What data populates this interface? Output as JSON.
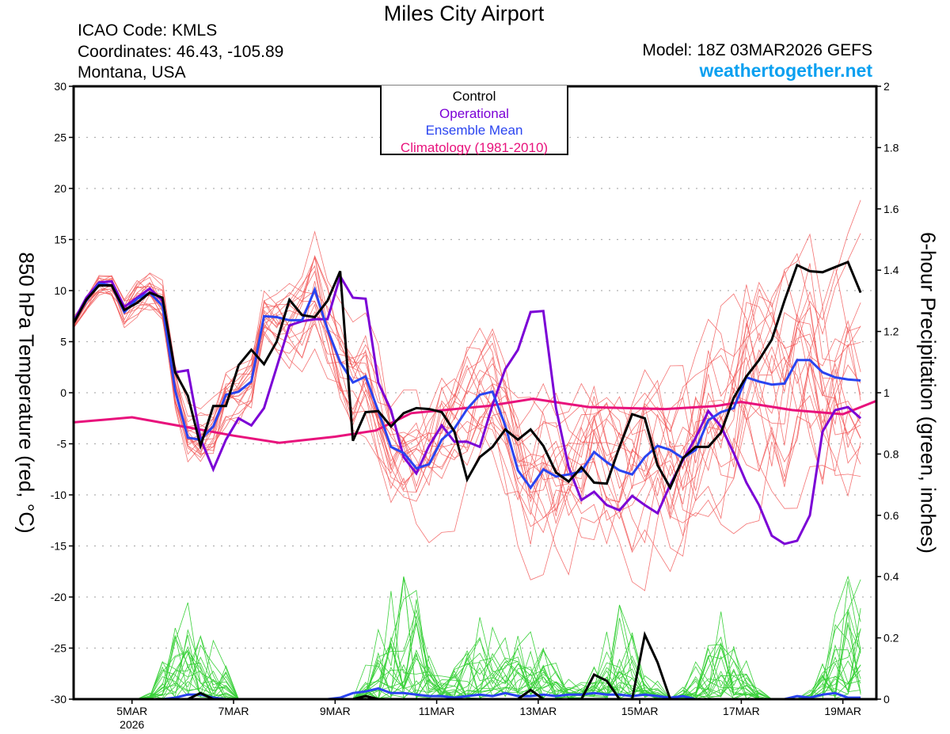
{
  "header": {
    "title": "Miles City Airport",
    "icao": "ICAO Code: KMLS",
    "coordinates": "Coordinates: 46.43, -105.89",
    "region": "Montana, USA",
    "model": "Model: 18Z 03MAR2026 GEFS",
    "site": "weathertogether.net"
  },
  "legend": {
    "items": [
      {
        "label": "Control",
        "color": "#000000"
      },
      {
        "label": "Operational",
        "color": "#7b00d6"
      },
      {
        "label": "Ensemble Mean",
        "color": "#2a44f0"
      },
      {
        "label": "Climatology (1981-2010)",
        "color": "#e8127c"
      }
    ]
  },
  "colors": {
    "members_temp": "#f25a5a",
    "members_precip": "#3ad13a",
    "control": "#000000",
    "operational": "#7b00d6",
    "mean": "#2a44f0",
    "climatology": "#e8127c",
    "grid": "#b0b0b0"
  },
  "chart_data": {
    "type": "line",
    "title": "Miles City Airport",
    "xlabel": "",
    "ylabel_left": "850 hPa Temperature (red, °C)",
    "ylabel_right": "6-hour Precipitation (green, inches)",
    "ylim_left": [
      -30,
      30
    ],
    "ylim_right": [
      0,
      2
    ],
    "yticks_left": [
      30,
      25,
      20,
      15,
      10,
      5,
      0,
      -5,
      -10,
      -15,
      -20,
      -25,
      -30
    ],
    "yticks_right": [
      "2",
      "1.8",
      "1.6",
      "1.4",
      "1.2",
      "1",
      "0.8",
      "0.6",
      "0.4",
      "0.2",
      "0"
    ],
    "xlim_day_of_march": [
      3.85,
      19.66
    ],
    "xticks": [
      {
        "day": 5,
        "label": "5MAR",
        "sublabel": "2026"
      },
      {
        "day": 7,
        "label": "7MAR",
        "sublabel": ""
      },
      {
        "day": 9,
        "label": "9MAR",
        "sublabel": ""
      },
      {
        "day": 11,
        "label": "11MAR",
        "sublabel": ""
      },
      {
        "day": 13,
        "label": "13MAR",
        "sublabel": ""
      },
      {
        "day": 15,
        "label": "15MAR",
        "sublabel": ""
      },
      {
        "day": 17,
        "label": "17MAR",
        "sublabel": ""
      },
      {
        "day": 19,
        "label": "19MAR",
        "sublabel": ""
      }
    ],
    "grid": true,
    "legend_position": "top-center",
    "x_start_day": 3.85,
    "x_step_days": 0.25,
    "series": [
      {
        "name": "Control",
        "axis": "left",
        "values": [
          6.8,
          9.1,
          10.5,
          10.5,
          8.1,
          8.8,
          9.8,
          9.3,
          2.0,
          -0.3,
          -5.2,
          -1.3,
          -1.3,
          2.7,
          4.2,
          2.8,
          5.0,
          9.1,
          7.6,
          7.4,
          9.0,
          11.9,
          -4.7,
          -1.9,
          -1.8,
          -3.3,
          -2.0,
          -1.5,
          -1.6,
          -1.9,
          -3.8,
          -8.5,
          -6.3,
          -5.3,
          -3.6,
          -4.6,
          -3.6,
          -5.2,
          -7.8,
          -8.7,
          -7.3,
          -8.8,
          -8.9,
          -5.3,
          -2.1,
          -2.5,
          -7.1,
          -9.3,
          -6.4,
          -5.3,
          -5.3,
          -3.9,
          -0.5,
          1.6,
          3.2,
          5.2,
          9.0,
          12.5,
          11.9,
          11.8,
          12.3,
          12.8,
          9.8
        ]
      },
      {
        "name": "Operational",
        "axis": "left",
        "values": [
          7.0,
          9.3,
          10.8,
          10.9,
          8.4,
          9.3,
          10.2,
          9.0,
          2.0,
          2.2,
          -4.5,
          -7.5,
          -4.6,
          -2.5,
          -3.2,
          -1.5,
          2.5,
          6.6,
          7.0,
          7.2,
          7.2,
          11.4,
          9.3,
          9.2,
          1.0,
          -1.7,
          -6.3,
          -7.9,
          -5.2,
          -3.2,
          -4.8,
          -4.8,
          -5.3,
          -1.2,
          2.3,
          4.2,
          7.9,
          8.0,
          -1.5,
          -7.3,
          -10.5,
          -9.7,
          -11.0,
          -11.5,
          -10.1,
          -11.0,
          -11.8,
          -9.0,
          -6.6,
          -4.4,
          -1.8,
          -3.3,
          -5.9,
          -8.8,
          -11.0,
          -14.0,
          -14.8,
          -14.5,
          -12.0,
          -3.8,
          -1.7,
          -1.4,
          -2.5
        ]
      },
      {
        "name": "Ensemble Mean",
        "axis": "left",
        "values": [
          6.9,
          9.0,
          10.7,
          10.5,
          7.9,
          9.2,
          9.8,
          8.5,
          0.2,
          -4.4,
          -4.6,
          -3.3,
          -0.2,
          0.1,
          1.1,
          7.5,
          7.4,
          7.1,
          7.1,
          10.1,
          6.2,
          3.0,
          1.0,
          1.6,
          -1.8,
          -5.3,
          -5.9,
          -7.4,
          -7.0,
          -4.6,
          -3.5,
          -1.6,
          -0.2,
          0.1,
          -3.2,
          -7.6,
          -9.3,
          -7.5,
          -8.2,
          -8.0,
          -7.7,
          -5.8,
          -6.8,
          -7.6,
          -8.0,
          -6.3,
          -5.2,
          -5.6,
          -6.4,
          -5.6,
          -2.7,
          -1.9,
          -1.5,
          1.5,
          1.1,
          0.8,
          0.9,
          3.2,
          3.2,
          2.0,
          1.5,
          1.3,
          1.2
        ]
      },
      {
        "name": "Climatology (1981-2010)",
        "axis": "left",
        "x_days": [
          3.85,
          5.0,
          7.0,
          7.9,
          9.0,
          9.8,
          10.5,
          12.0,
          12.9,
          14.0,
          15.5,
          16.5,
          17.0,
          18.0,
          19.0,
          19.66
        ],
        "values": [
          -2.9,
          -2.4,
          -4.2,
          -4.9,
          -4.3,
          -3.7,
          -2.0,
          -1.3,
          -0.6,
          -1.4,
          -1.6,
          -1.3,
          -0.9,
          -1.7,
          -2.1,
          -0.8
        ]
      },
      {
        "name": "Control Precip",
        "axis": "right",
        "values": [
          0,
          0,
          0,
          0,
          0,
          0,
          0,
          0,
          0,
          0,
          0.02,
          0,
          0,
          0,
          0,
          0,
          0,
          0,
          0,
          0,
          0,
          0,
          0,
          0.01,
          0,
          0,
          0,
          0,
          0,
          0,
          0,
          0,
          0,
          0,
          0,
          0,
          0.03,
          0,
          0,
          0,
          0,
          0.08,
          0.06,
          0,
          0,
          0.21,
          0.12,
          0,
          0,
          0,
          0,
          0,
          0,
          0,
          0,
          0,
          0,
          0,
          0,
          0,
          0,
          0,
          0
        ]
      },
      {
        "name": "Mean Precip",
        "axis": "right",
        "values": [
          0,
          0,
          0,
          0,
          0,
          0,
          0,
          0,
          0.005,
          0.015,
          0.015,
          0.005,
          0,
          0,
          0,
          0,
          0,
          0,
          0,
          0,
          0,
          0.005,
          0.02,
          0.025,
          0.035,
          0.02,
          0.02,
          0.015,
          0.01,
          0.01,
          0.005,
          0.01,
          0.015,
          0.01,
          0.02,
          0.01,
          0.01,
          0.015,
          0.01,
          0.015,
          0.015,
          0.02,
          0.015,
          0.015,
          0.01,
          0.015,
          0.01,
          0.005,
          0.01,
          0,
          0,
          0,
          0,
          0,
          0,
          0,
          0,
          0.01,
          0.005,
          0.015,
          0.02,
          0.005,
          0.005
        ]
      }
    ],
    "member_count": 20,
    "members_temp_note": "individual GEFS ensemble members (thin red lines)",
    "members_precip_note": "individual GEFS ensemble member 6-hour precipitation (thin green lines)",
    "members_precip_peaks": [
      {
        "day": 6.2,
        "max_in": 0.28
      },
      {
        "day": 10.3,
        "max_in": 0.37
      },
      {
        "day": 11.9,
        "max_in": 0.22
      },
      {
        "day": 12.9,
        "max_in": 0.2
      },
      {
        "day": 14.6,
        "max_in": 0.24
      },
      {
        "day": 16.6,
        "max_in": 0.2
      },
      {
        "day": 19.2,
        "max_in": 0.38
      }
    ]
  }
}
